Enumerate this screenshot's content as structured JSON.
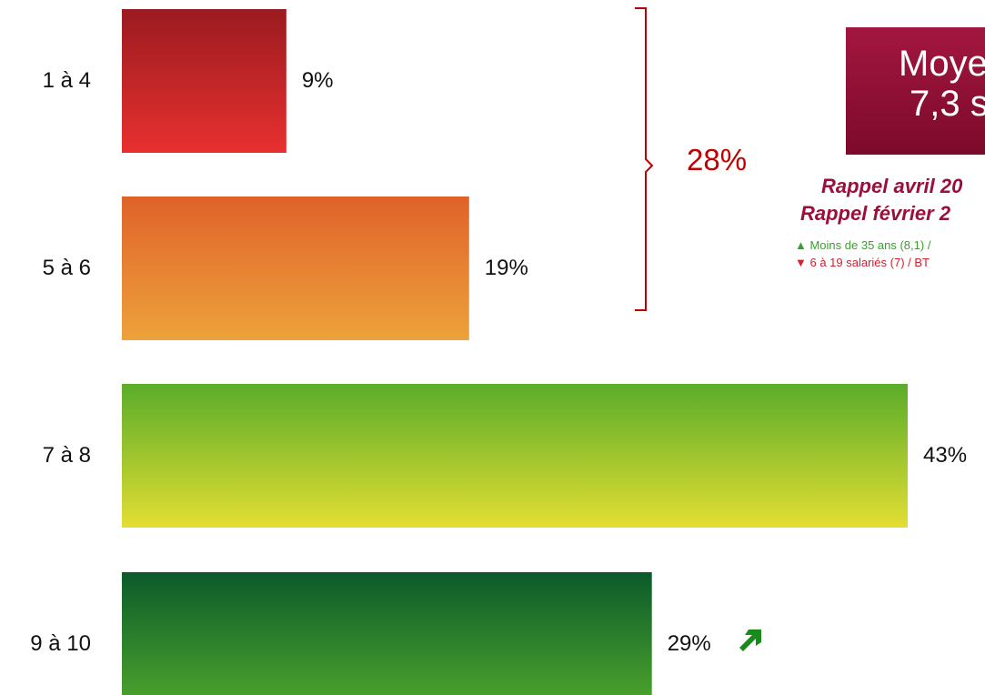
{
  "chart_data": {
    "type": "bar",
    "orientation": "horizontal",
    "categories": [
      "1 à 4",
      "5 à 6",
      "7 à 8",
      "9 à 10"
    ],
    "values": [
      9,
      19,
      43,
      29
    ],
    "value_labels": [
      "9%",
      "19%",
      "43%",
      "29%"
    ],
    "xlim": [
      0,
      43
    ],
    "grid": false,
    "colors": [
      [
        "#9a1b20",
        "#e8302f"
      ],
      [
        "#e0622a",
        "#eda23b"
      ],
      [
        "#5aac2a",
        "#e3de33"
      ],
      [
        "#0b5a2b",
        "#53ab2c"
      ]
    ],
    "trend_up_index": 3
  },
  "bracket": {
    "total_label": "28%",
    "color": "#c00000"
  },
  "average_box": {
    "title": "Moyen",
    "value": "7,3 s"
  },
  "recalls": {
    "april": "Rappel avril 20",
    "february": "Rappel février 2"
  },
  "notes": {
    "up": "▲ Moins de 35 ans (8,1) /",
    "down": "▼ 6 à 19 salariés (7) / BT"
  },
  "icons": {
    "trend": "trend-up-arrow-icon",
    "trend_color": "#1a8a1a"
  }
}
